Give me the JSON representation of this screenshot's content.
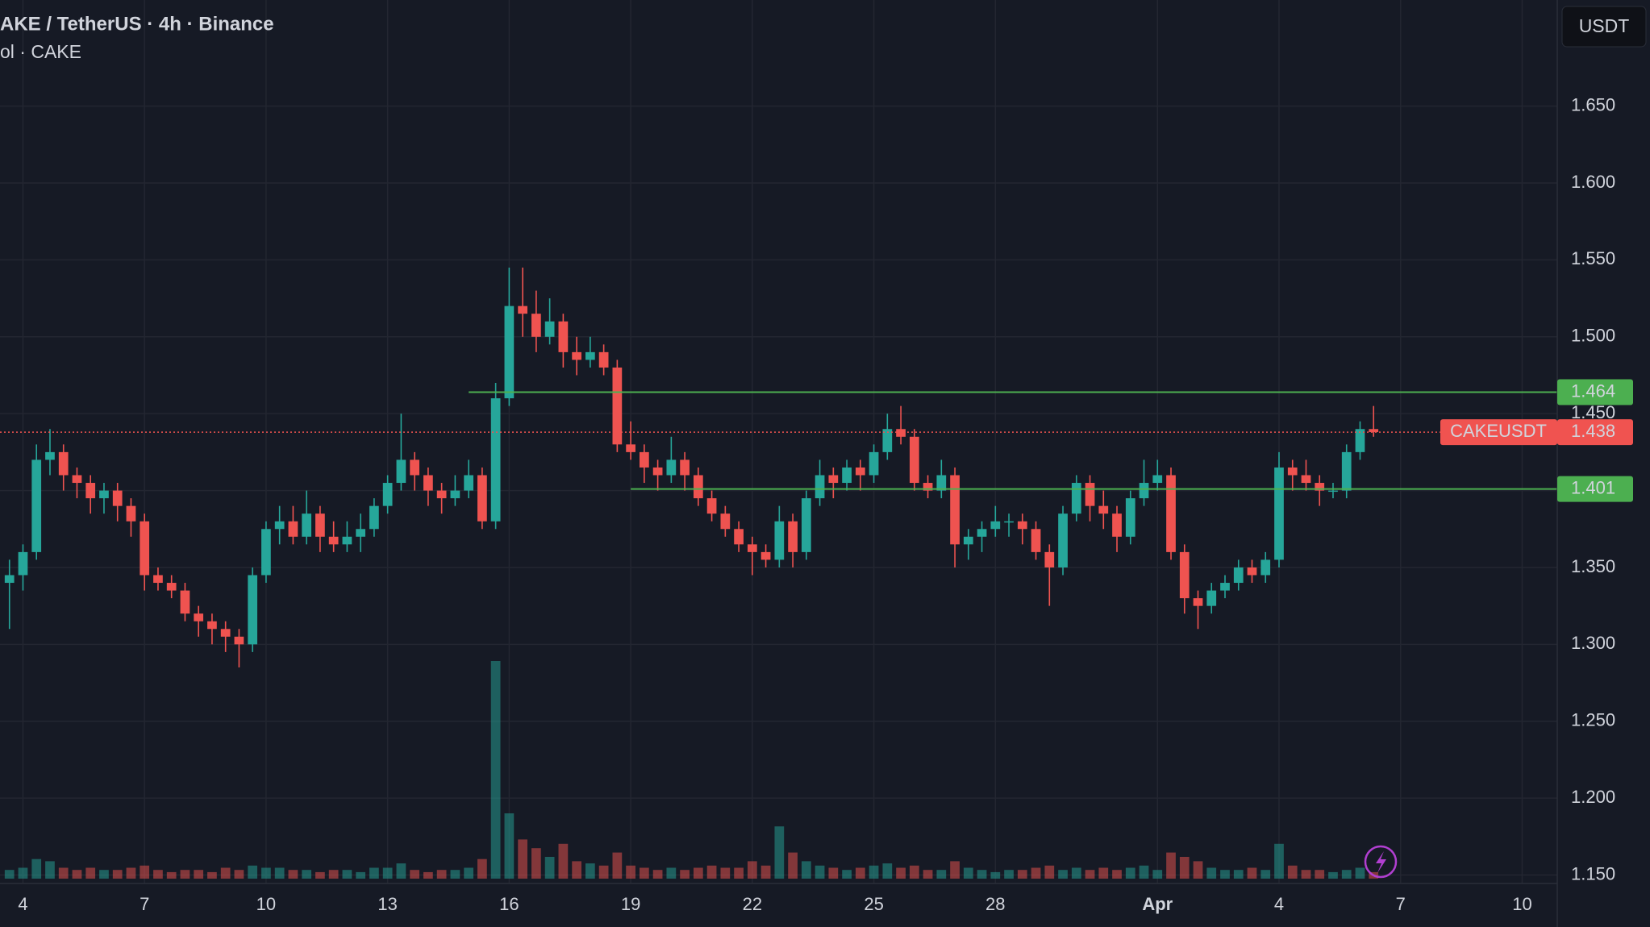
{
  "chart_data": {
    "type": "candlestick",
    "title": "AKE / TetherUS · 4h · Binance",
    "subtitle": "ol · CAKE",
    "currency": "USDT",
    "up_color": "#26a69a",
    "down_color": "#ef5350",
    "grid": true,
    "candles": [
      [
        1.34,
        1.355,
        1.31,
        1.345
      ],
      [
        1.345,
        1.365,
        1.335,
        1.36
      ],
      [
        1.36,
        1.43,
        1.355,
        1.42
      ],
      [
        1.42,
        1.44,
        1.41,
        1.425
      ],
      [
        1.425,
        1.43,
        1.4,
        1.41
      ],
      [
        1.41,
        1.415,
        1.395,
        1.405
      ],
      [
        1.405,
        1.41,
        1.385,
        1.395
      ],
      [
        1.395,
        1.405,
        1.385,
        1.4
      ],
      [
        1.4,
        1.405,
        1.38,
        1.39
      ],
      [
        1.39,
        1.395,
        1.37,
        1.38
      ],
      [
        1.38,
        1.385,
        1.335,
        1.345
      ],
      [
        1.345,
        1.35,
        1.335,
        1.34
      ],
      [
        1.34,
        1.345,
        1.33,
        1.335
      ],
      [
        1.335,
        1.34,
        1.315,
        1.32
      ],
      [
        1.32,
        1.325,
        1.305,
        1.315
      ],
      [
        1.315,
        1.32,
        1.3,
        1.31
      ],
      [
        1.31,
        1.315,
        1.295,
        1.305
      ],
      [
        1.305,
        1.31,
        1.285,
        1.3
      ],
      [
        1.3,
        1.35,
        1.295,
        1.345
      ],
      [
        1.345,
        1.38,
        1.34,
        1.375
      ],
      [
        1.375,
        1.39,
        1.365,
        1.38
      ],
      [
        1.38,
        1.39,
        1.365,
        1.37
      ],
      [
        1.37,
        1.4,
        1.365,
        1.385
      ],
      [
        1.385,
        1.39,
        1.36,
        1.37
      ],
      [
        1.37,
        1.38,
        1.36,
        1.365
      ],
      [
        1.365,
        1.38,
        1.36,
        1.37
      ],
      [
        1.37,
        1.385,
        1.36,
        1.375
      ],
      [
        1.375,
        1.395,
        1.37,
        1.39
      ],
      [
        1.39,
        1.41,
        1.385,
        1.405
      ],
      [
        1.405,
        1.45,
        1.4,
        1.42
      ],
      [
        1.42,
        1.425,
        1.4,
        1.41
      ],
      [
        1.41,
        1.415,
        1.39,
        1.4
      ],
      [
        1.4,
        1.405,
        1.385,
        1.395
      ],
      [
        1.395,
        1.41,
        1.39,
        1.4
      ],
      [
        1.4,
        1.42,
        1.395,
        1.41
      ],
      [
        1.41,
        1.415,
        1.375,
        1.38
      ],
      [
        1.38,
        1.47,
        1.375,
        1.46
      ],
      [
        1.46,
        1.545,
        1.455,
        1.52
      ],
      [
        1.52,
        1.545,
        1.5,
        1.515
      ],
      [
        1.515,
        1.53,
        1.49,
        1.5
      ],
      [
        1.5,
        1.525,
        1.495,
        1.51
      ],
      [
        1.51,
        1.515,
        1.48,
        1.49
      ],
      [
        1.49,
        1.5,
        1.475,
        1.485
      ],
      [
        1.485,
        1.5,
        1.48,
        1.49
      ],
      [
        1.49,
        1.495,
        1.475,
        1.48
      ],
      [
        1.48,
        1.485,
        1.425,
        1.43
      ],
      [
        1.43,
        1.445,
        1.42,
        1.425
      ],
      [
        1.425,
        1.43,
        1.405,
        1.415
      ],
      [
        1.415,
        1.42,
        1.4,
        1.41
      ],
      [
        1.41,
        1.435,
        1.405,
        1.42
      ],
      [
        1.42,
        1.425,
        1.4,
        1.41
      ],
      [
        1.41,
        1.415,
        1.39,
        1.395
      ],
      [
        1.395,
        1.4,
        1.38,
        1.385
      ],
      [
        1.385,
        1.39,
        1.37,
        1.375
      ],
      [
        1.375,
        1.38,
        1.36,
        1.365
      ],
      [
        1.365,
        1.37,
        1.345,
        1.36
      ],
      [
        1.36,
        1.365,
        1.35,
        1.355
      ],
      [
        1.355,
        1.39,
        1.35,
        1.38
      ],
      [
        1.38,
        1.385,
        1.35,
        1.36
      ],
      [
        1.36,
        1.4,
        1.355,
        1.395
      ],
      [
        1.395,
        1.42,
        1.39,
        1.41
      ],
      [
        1.41,
        1.415,
        1.395,
        1.405
      ],
      [
        1.405,
        1.42,
        1.4,
        1.415
      ],
      [
        1.415,
        1.42,
        1.4,
        1.41
      ],
      [
        1.41,
        1.43,
        1.405,
        1.425
      ],
      [
        1.425,
        1.45,
        1.42,
        1.44
      ],
      [
        1.44,
        1.455,
        1.43,
        1.435
      ],
      [
        1.435,
        1.44,
        1.4,
        1.405
      ],
      [
        1.405,
        1.41,
        1.395,
        1.4
      ],
      [
        1.4,
        1.42,
        1.395,
        1.41
      ],
      [
        1.41,
        1.415,
        1.35,
        1.365
      ],
      [
        1.365,
        1.375,
        1.355,
        1.37
      ],
      [
        1.37,
        1.38,
        1.36,
        1.375
      ],
      [
        1.375,
        1.39,
        1.37,
        1.38
      ],
      [
        1.38,
        1.385,
        1.37,
        1.38
      ],
      [
        1.38,
        1.385,
        1.365,
        1.375
      ],
      [
        1.375,
        1.38,
        1.355,
        1.36
      ],
      [
        1.36,
        1.365,
        1.325,
        1.35
      ],
      [
        1.35,
        1.39,
        1.345,
        1.385
      ],
      [
        1.385,
        1.41,
        1.38,
        1.405
      ],
      [
        1.405,
        1.41,
        1.38,
        1.39
      ],
      [
        1.39,
        1.4,
        1.375,
        1.385
      ],
      [
        1.385,
        1.39,
        1.36,
        1.37
      ],
      [
        1.37,
        1.4,
        1.365,
        1.395
      ],
      [
        1.395,
        1.42,
        1.39,
        1.405
      ],
      [
        1.405,
        1.42,
        1.4,
        1.41
      ],
      [
        1.41,
        1.415,
        1.355,
        1.36
      ],
      [
        1.36,
        1.365,
        1.32,
        1.33
      ],
      [
        1.33,
        1.335,
        1.31,
        1.325
      ],
      [
        1.325,
        1.34,
        1.32,
        1.335
      ],
      [
        1.335,
        1.345,
        1.33,
        1.34
      ],
      [
        1.34,
        1.355,
        1.335,
        1.35
      ],
      [
        1.35,
        1.355,
        1.34,
        1.345
      ],
      [
        1.345,
        1.36,
        1.34,
        1.355
      ],
      [
        1.355,
        1.425,
        1.35,
        1.415
      ],
      [
        1.415,
        1.42,
        1.4,
        1.41
      ],
      [
        1.41,
        1.42,
        1.4,
        1.405
      ],
      [
        1.405,
        1.41,
        1.39,
        1.4
      ],
      [
        1.4,
        1.405,
        1.395,
        1.4
      ],
      [
        1.4,
        1.43,
        1.395,
        1.425
      ],
      [
        1.425,
        1.445,
        1.42,
        1.44
      ],
      [
        1.44,
        1.455,
        1.435,
        1.438
      ]
    ],
    "volume": [
      4,
      5,
      9,
      8,
      5,
      4,
      5,
      4,
      4,
      5,
      6,
      4,
      3,
      4,
      4,
      3,
      5,
      4,
      6,
      5,
      5,
      4,
      4,
      3,
      4,
      4,
      3,
      5,
      5,
      7,
      4,
      3,
      4,
      4,
      5,
      9,
      100,
      30,
      18,
      14,
      10,
      16,
      8,
      7,
      6,
      12,
      6,
      5,
      4,
      5,
      4,
      5,
      6,
      5,
      5,
      8,
      6,
      24,
      12,
      8,
      6,
      5,
      4,
      5,
      6,
      7,
      5,
      6,
      4,
      4,
      8,
      5,
      4,
      3,
      4,
      4,
      5,
      6,
      4,
      5,
      4,
      5,
      4,
      5,
      6,
      4,
      12,
      10,
      8,
      5,
      4,
      4,
      5,
      4,
      16,
      6,
      4,
      4,
      3,
      4,
      5,
      3
    ],
    "xlim": [
      -0.7,
      114.6
    ],
    "xticks": [
      {
        "value": 1,
        "label": "4"
      },
      {
        "value": 10,
        "label": "7"
      },
      {
        "value": 19,
        "label": "10"
      },
      {
        "value": 28,
        "label": "13"
      },
      {
        "value": 37,
        "label": "16"
      },
      {
        "value": 46,
        "label": "19"
      },
      {
        "value": 55,
        "label": "22"
      },
      {
        "value": 64,
        "label": "25"
      },
      {
        "value": 73,
        "label": "28"
      },
      {
        "value": 85,
        "label": "Apr"
      },
      {
        "value": 94,
        "label": "4"
      },
      {
        "value": 103,
        "label": "7"
      },
      {
        "value": 112,
        "label": "10"
      }
    ],
    "ylim": [
      1.1445,
      1.719
    ],
    "yticks": [
      {
        "value": 1.15,
        "label": "1.150"
      },
      {
        "value": 1.2,
        "label": "1.200"
      },
      {
        "value": 1.25,
        "label": "1.250"
      },
      {
        "value": 1.3,
        "label": "1.300"
      },
      {
        "value": 1.35,
        "label": "1.350"
      },
      {
        "value": 1.4,
        "label": "1.400"
      },
      {
        "value": 1.45,
        "label": "1.450"
      },
      {
        "value": 1.5,
        "label": "1.500"
      },
      {
        "value": 1.55,
        "label": "1.550"
      },
      {
        "value": 1.6,
        "label": "1.600"
      },
      {
        "value": 1.65,
        "label": "1.650"
      }
    ],
    "levels": [
      {
        "value": 1.464,
        "from": 34,
        "color": "#4caf50"
      },
      {
        "value": 1.401,
        "from": 46,
        "color": "#4caf50"
      }
    ],
    "last": {
      "symbol": "CAKEUSDT",
      "value": 1.438,
      "color": "#f05350"
    }
  }
}
